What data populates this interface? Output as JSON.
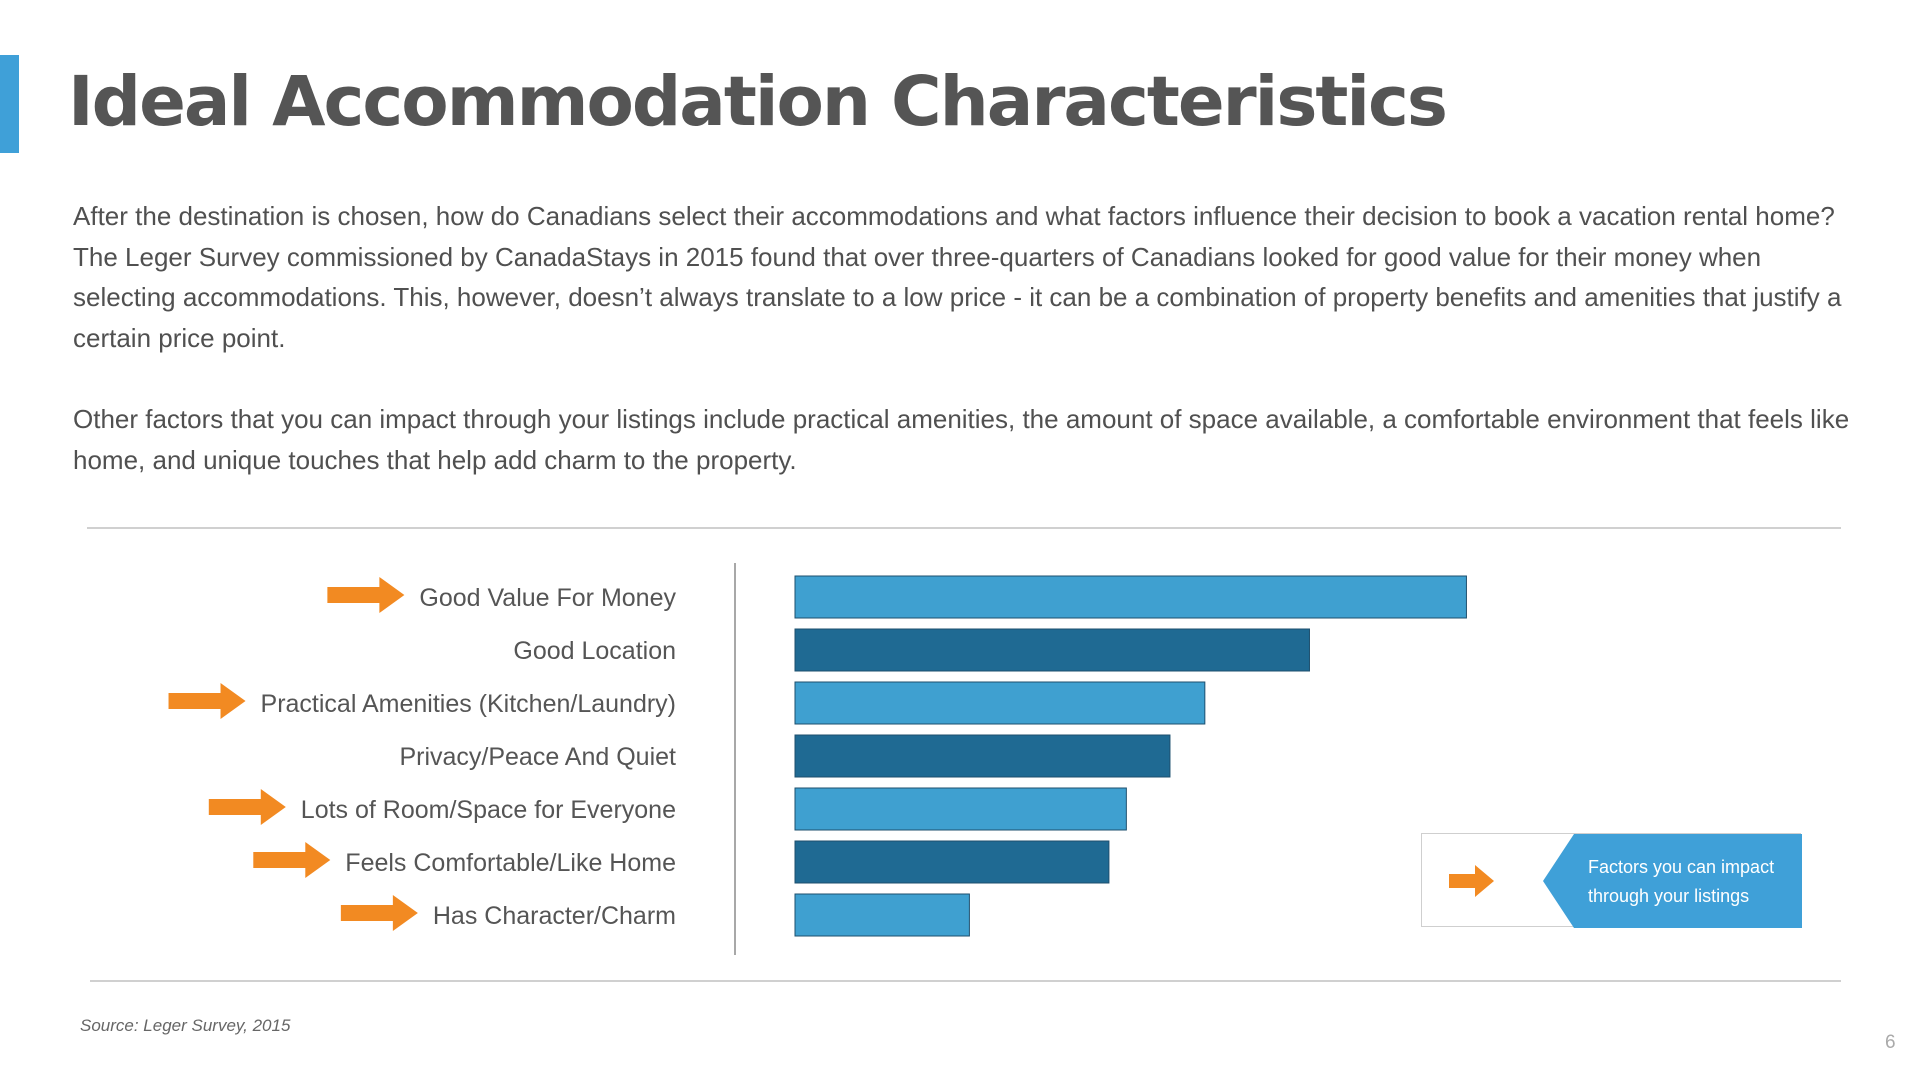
{
  "slide": {
    "title": "Ideal Accommodation Characteristics",
    "paragraphs": [
      "After the destination is chosen, how do Canadians select their accommodations and what factors influence their decision to book a vacation rental home? The Leger Survey commissioned by CanadaStays in 2015 found that over three-quarters of Canadians looked for good value for their money when selecting accommodations. This, however, doesn’t always translate to a low price - it can be a combination of property benefits and amenities that justify a certain price point.",
      "Other factors that you can impact through your listings include practical amenities, the amount of space available, a comfortable environment that feels like home, and unique touches that help add charm to the property."
    ],
    "source": "Source: Leger Survey, 2015",
    "page_number": "6"
  },
  "colors": {
    "accent": "#3fa0d8",
    "bar_light": "#3fa0d0",
    "bar_dark": "#1f6a93",
    "arrow": "#f28a22",
    "legend_fill": "#3fa0d8"
  },
  "legend": {
    "text": "Factors you can impact through your listings",
    "icon": "orange-arrow-icon"
  },
  "chart_data": {
    "type": "bar",
    "orientation": "horizontal",
    "title": "",
    "xlabel": "",
    "ylabel": "",
    "categories": [
      "Good Value For Money",
      "Good Location",
      "Practical Amenities (Kitchen/Laundry)",
      "Privacy/Peace And Quiet",
      "Lots of Room/Space for Everyone",
      "Feels Comfortable/Like Home",
      "Has Character/Charm"
    ],
    "values": [
      77,
      59,
      47,
      43,
      38,
      36,
      20
    ],
    "xlim": [
      0,
      100
    ],
    "impactable": [
      true,
      false,
      true,
      false,
      true,
      true,
      true
    ],
    "grid": false,
    "legend_position": "bottom-right"
  }
}
